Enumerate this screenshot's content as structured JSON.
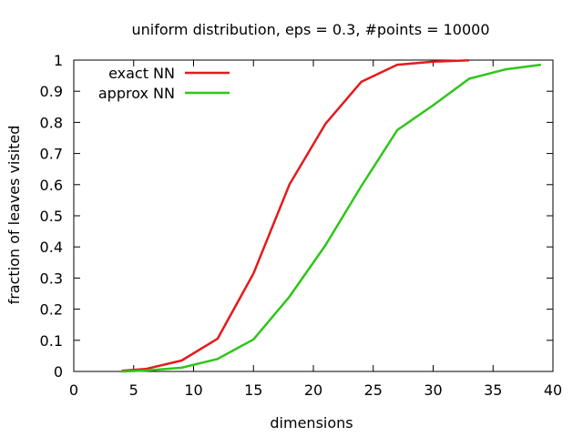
{
  "chart_data": {
    "type": "line",
    "title": "uniform distribution, eps = 0.3, #points = 10000",
    "xlabel": "dimensions",
    "ylabel": "fraction of leaves visited",
    "xlim": [
      0,
      40
    ],
    "ylim": [
      0,
      1
    ],
    "xticks": [
      "0",
      "5",
      "10",
      "15",
      "20",
      "25",
      "30",
      "35",
      "40"
    ],
    "yticks": [
      "0",
      "0.1",
      "0.2",
      "0.3",
      "0.4",
      "0.5",
      "0.6",
      "0.7",
      "0.8",
      "0.9",
      "1"
    ],
    "grid": false,
    "legend_position": "top-left",
    "series": [
      {
        "name": "exact NN",
        "color": "#e41a1c",
        "x": [
          4,
          6,
          9,
          12,
          15,
          18,
          21,
          24,
          27,
          30,
          33
        ],
        "y": [
          0.002,
          0.008,
          0.035,
          0.105,
          0.315,
          0.6,
          0.795,
          0.93,
          0.985,
          0.995,
          0.999
        ]
      },
      {
        "name": "approx NN",
        "color": "#2ec61a",
        "x": [
          4,
          6,
          9,
          12,
          15,
          18,
          21,
          24,
          27,
          30,
          33,
          36,
          39
        ],
        "y": [
          0.0,
          0.003,
          0.012,
          0.04,
          0.103,
          0.24,
          0.405,
          0.595,
          0.775,
          0.855,
          0.94,
          0.97,
          0.985
        ]
      }
    ]
  }
}
